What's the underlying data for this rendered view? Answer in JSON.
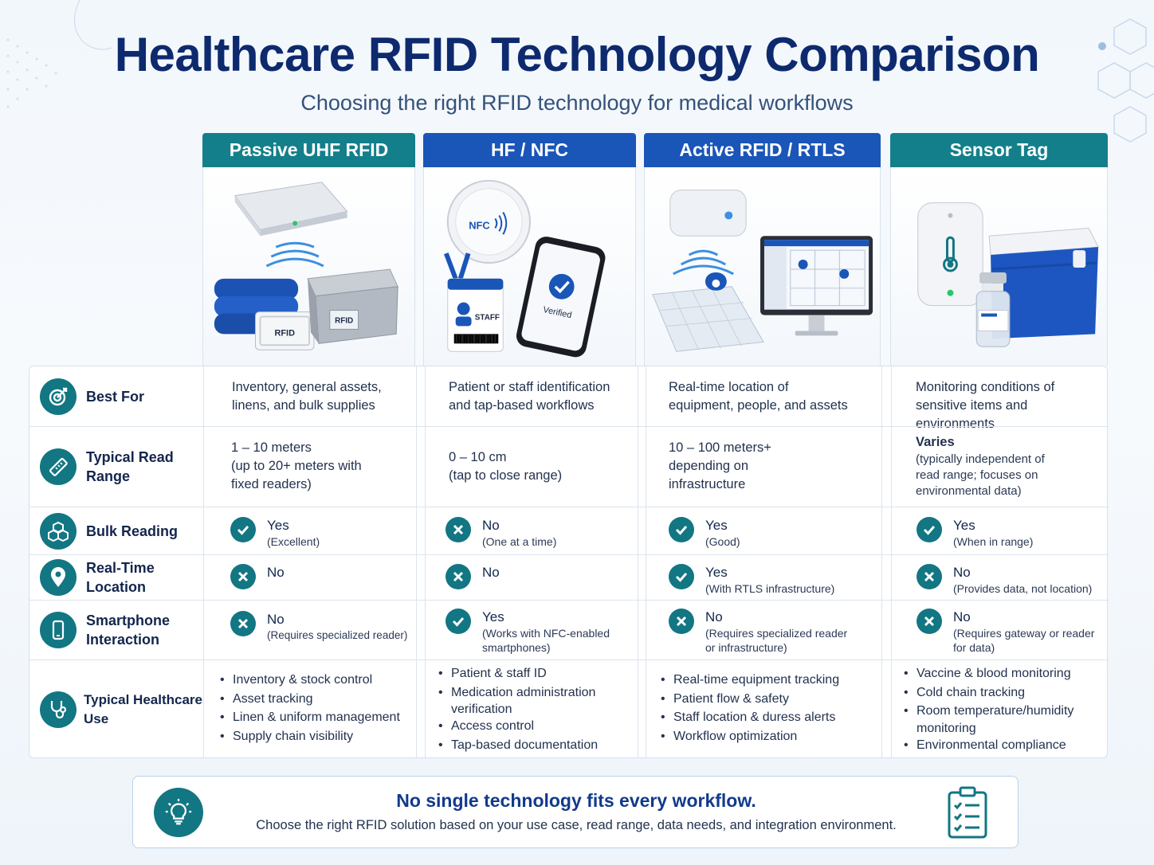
{
  "title": "Healthcare RFID Technology Comparison",
  "subtitle": "Choosing the right RFID technology for medical workflows",
  "colors": {
    "teal": "#137f8a",
    "blue": "#1a55b8",
    "navy": "#0e2a6e"
  },
  "columns": [
    {
      "name": "Passive UHF RFID",
      "illustration": "ceiling-reader-with-tagged-linens-and-container",
      "tag_label": "RFID",
      "box_label": "RFID"
    },
    {
      "name": "HF / NFC",
      "illustration": "nfc-badge-and-smartphone",
      "nfc_label": "NFC",
      "badge_label": "STAFF",
      "phone_label": "Verified"
    },
    {
      "name": "Active RFID / RTLS",
      "illustration": "active-tag-map-and-monitor"
    },
    {
      "name": "Sensor Tag",
      "illustration": "temperature-sensor-cooler-and-vial"
    }
  ],
  "rows": {
    "best_for": {
      "label": "Best For",
      "icon": "target-icon",
      "values": [
        [
          "Inventory, general assets,",
          "linens, and bulk supplies"
        ],
        [
          "Patient or staff identification",
          "and tap-based workflows"
        ],
        [
          "Real-time location of",
          "equipment, people, and assets"
        ],
        [
          "Monitoring conditions of",
          "sensitive items and environments"
        ]
      ]
    },
    "read_range": {
      "label": "Typical Read Range",
      "icon": "ruler-icon",
      "values": [
        {
          "main": "1 – 10 meters",
          "detail": [
            "(up to 20+ meters with",
            "fixed readers)"
          ]
        },
        {
          "main": "0 – 10 cm",
          "detail": [
            "(tap to close range)"
          ]
        },
        {
          "main": "10 – 100 meters+",
          "detail": [
            "depending on",
            "infrastructure"
          ]
        },
        {
          "main": "Varies",
          "detail": [
            "(typically independent of",
            "read range; focuses on",
            "environmental data)"
          ]
        }
      ]
    },
    "bulk_reading": {
      "label": "Bulk Reading",
      "icon": "boxes-icon",
      "values": [
        {
          "ok": true,
          "main": "Yes",
          "detail": [
            "(Excellent)"
          ]
        },
        {
          "ok": false,
          "main": "No",
          "detail": [
            "(One at a time)"
          ]
        },
        {
          "ok": true,
          "main": "Yes",
          "detail": [
            "(Good)"
          ]
        },
        {
          "ok": true,
          "main": "Yes",
          "detail": [
            "(When in range)"
          ]
        }
      ]
    },
    "real_time_location": {
      "label": "Real-Time Location",
      "icon": "location-pin-icon",
      "values": [
        {
          "ok": false,
          "main": "No",
          "detail": []
        },
        {
          "ok": false,
          "main": "No",
          "detail": []
        },
        {
          "ok": true,
          "main": "Yes",
          "detail": [
            "(With RTLS infrastructure)"
          ]
        },
        {
          "ok": false,
          "main": "No",
          "detail": [
            "(Provides data, not location)"
          ]
        }
      ]
    },
    "smartphone": {
      "label_line1": "Smartphone",
      "label_line2": "Interaction",
      "icon": "smartphone-icon",
      "values": [
        {
          "ok": false,
          "main": "No",
          "detail": [
            "(Requires specialized reader)"
          ]
        },
        {
          "ok": true,
          "main": "Yes",
          "detail": [
            "(Works with NFC-enabled",
            "smartphones)"
          ]
        },
        {
          "ok": false,
          "main": "No",
          "detail": [
            "(Requires specialized reader",
            "or infrastructure)"
          ]
        },
        {
          "ok": false,
          "main": "No",
          "detail": [
            "(Requires gateway or reader",
            "for data)"
          ]
        }
      ]
    },
    "healthcare_use": {
      "label": "Typical Healthcare Use",
      "icon": "stethoscope-icon",
      "values": [
        [
          "Inventory & stock control",
          "Asset tracking",
          "Linen & uniform management",
          "Supply chain visibility"
        ],
        [
          "Patient & staff ID",
          "Medication administration",
          "verification",
          "Access control",
          "Tap-based documentation"
        ],
        [
          "Real-time equipment tracking",
          "Patient flow & safety",
          "Staff location & duress alerts",
          "Workflow optimization"
        ],
        [
          "Vaccine & blood monitoring",
          "Cold chain tracking",
          "Room temperature/humidity",
          "monitoring",
          "Environmental compliance"
        ]
      ]
    }
  },
  "callout": {
    "title": "No single technology fits every workflow.",
    "body": "Choose the right RFID solution based on your use case, read range, data needs, and integration environment.",
    "left_icon": "lightbulb-icon",
    "right_icon": "clipboard-checklist-icon"
  }
}
